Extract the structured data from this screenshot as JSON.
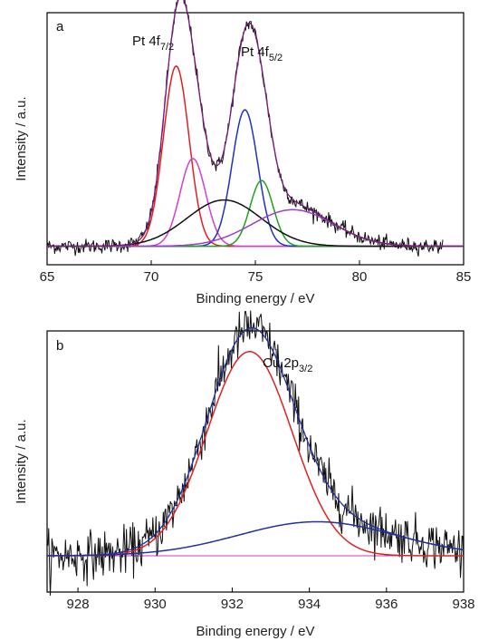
{
  "chart_data": [
    {
      "type": "line",
      "panel_label": "a",
      "xlabel": "Binding energy / eV",
      "ylabel": "Intensity / a.u.",
      "xlim": [
        65,
        85
      ],
      "x_ticks": [
        65,
        70,
        75,
        80,
        85
      ],
      "y_ticks_shown": false,
      "grid": false,
      "annotations": [
        {
          "base": "Pt 4f",
          "sub": "7/2",
          "x": 71.3
        },
        {
          "base": "Pt 4f",
          "sub": "5/2",
          "x": 74.7
        }
      ],
      "background": 0.02,
      "components": [
        {
          "color": "#e02020",
          "center": 71.2,
          "amplitude": 0.74,
          "fwhm": 1.45
        },
        {
          "color": "#d040d0",
          "center": 72.0,
          "amplitude": 0.36,
          "fwhm": 1.45
        },
        {
          "color": "#2030c0",
          "center": 74.5,
          "amplitude": 0.56,
          "fwhm": 1.45
        },
        {
          "color": "#20a020",
          "center": 75.3,
          "amplitude": 0.27,
          "fwhm": 1.3
        },
        {
          "color": "#101010",
          "center": 73.5,
          "amplitude": 0.19,
          "fwhm": 4.2
        },
        {
          "color": "#9a40c0",
          "center": 76.8,
          "amplitude": 0.15,
          "fwhm": 4.6
        }
      ],
      "envelope_color": "#7a1a7a",
      "raw_color": "#111111",
      "raw_xlim": [
        65,
        84
      ],
      "raw_noise": 0.015
    },
    {
      "type": "line",
      "panel_label": "b",
      "xlabel": "Binding energy / eV",
      "ylabel": "Intensity / a.u.",
      "xlim": [
        927.2,
        938
      ],
      "x_ticks": [
        928,
        930,
        932,
        934,
        936,
        938
      ],
      "y_ticks_shown": false,
      "grid": false,
      "annotations": [
        {
          "base": "Cu 2p",
          "sub": "3/2",
          "x": 932.5
        }
      ],
      "background": 0.0,
      "components": [
        {
          "color": "#e02020",
          "center": 932.45,
          "amplitude": 0.78,
          "fwhm": 2.6
        },
        {
          "color": "#2030a0",
          "center": 934.2,
          "amplitude": 0.13,
          "fwhm": 4.8
        }
      ],
      "envelope_color": "#2030a0",
      "raw_color": "#111111",
      "raw_xlim": [
        927.2,
        938
      ],
      "raw_noise": 0.045
    }
  ]
}
